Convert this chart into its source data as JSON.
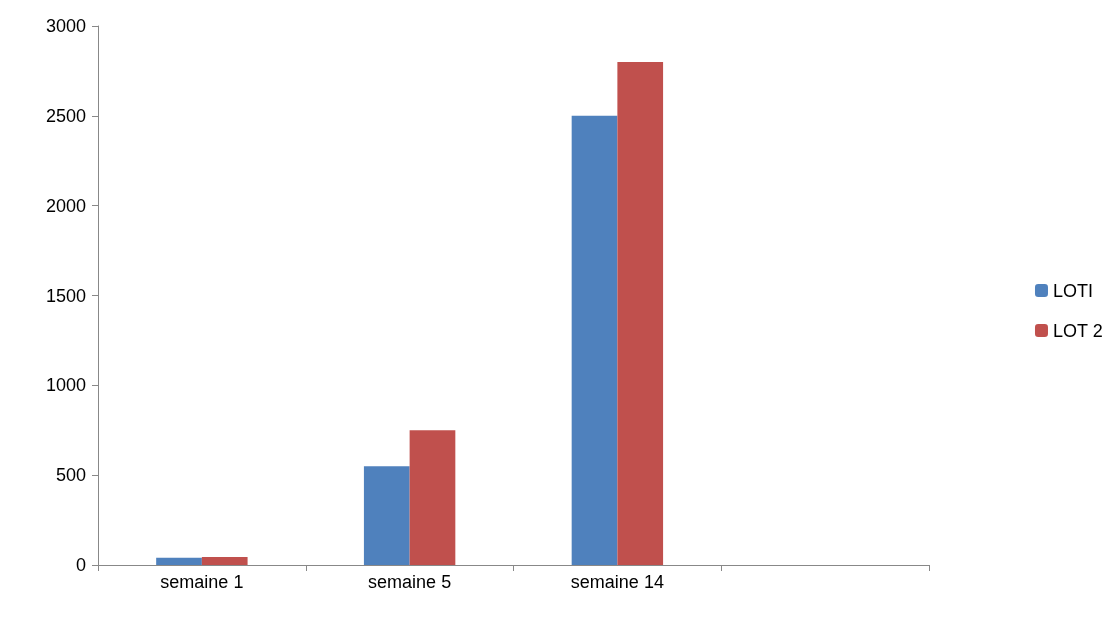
{
  "chart_data": {
    "type": "bar",
    "categories": [
      "semaine 1",
      "semaine 5",
      "semaine 14",
      null
    ],
    "series": [
      {
        "name": "LOTI",
        "color": "#4f81bd",
        "values": [
          40,
          550,
          2500,
          null
        ]
      },
      {
        "name": "LOT 2",
        "color": "#c0504d",
        "values": [
          45,
          750,
          2800,
          null
        ]
      }
    ],
    "ylim": [
      0,
      3000
    ],
    "yticks": [
      0,
      500,
      1000,
      1500,
      2000,
      2500,
      3000
    ],
    "grid": false,
    "legend": "right"
  }
}
